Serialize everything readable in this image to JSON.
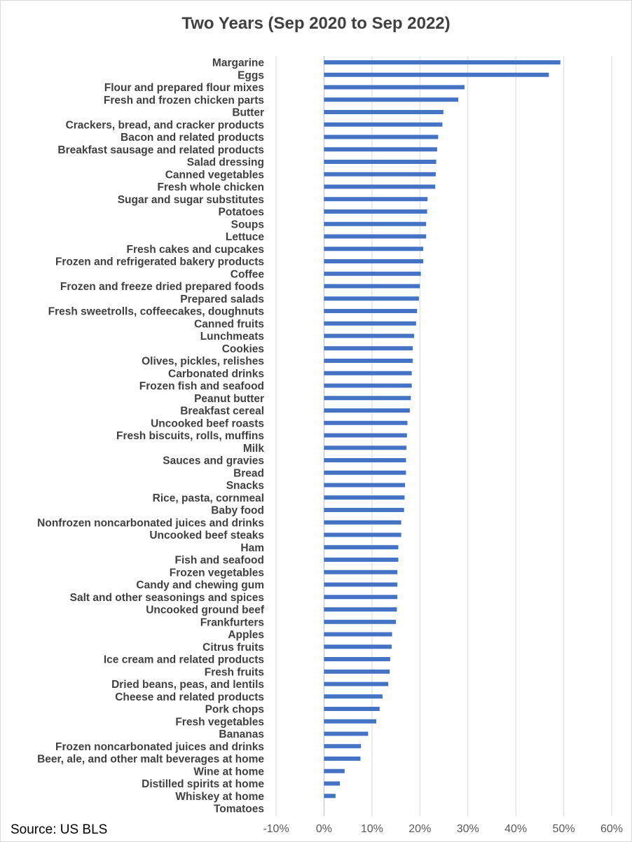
{
  "chart_data": {
    "type": "bar",
    "orientation": "horizontal",
    "title": "Two Years (Sep 2020 to Sep 2022)",
    "source": "Source: US BLS",
    "xlabel": "",
    "ylabel": "",
    "xlim": [
      -10,
      60
    ],
    "x_ticks": [
      -10,
      0,
      10,
      20,
      30,
      40,
      50,
      60
    ],
    "x_tick_labels": [
      "-10%",
      "0%",
      "10%",
      "20%",
      "30%",
      "40%",
      "50%",
      "60%"
    ],
    "grid": "vertical",
    "legend": "none",
    "categories": [
      "Margarine",
      "Eggs",
      "Flour and prepared flour mixes",
      "Fresh and frozen chicken parts",
      "Butter",
      "Crackers, bread, and cracker products",
      "Bacon and related products",
      "Breakfast sausage and related products",
      "Salad dressing",
      "Canned vegetables",
      "Fresh whole chicken",
      "Sugar and sugar substitutes",
      "Potatoes",
      "Soups",
      "Lettuce",
      "Fresh cakes and cupcakes",
      "Frozen and refrigerated bakery products",
      "Coffee",
      "Frozen and freeze dried prepared foods",
      "Prepared salads",
      "Fresh sweetrolls, coffeecakes, doughnuts",
      "Canned fruits",
      "Lunchmeats",
      "Cookies",
      "Olives, pickles, relishes",
      "Carbonated drinks",
      "Frozen fish and seafood",
      "Peanut butter",
      "Breakfast cereal",
      "Uncooked beef roasts",
      "Fresh biscuits, rolls, muffins",
      "Milk",
      "Sauces and gravies",
      "Bread",
      "Snacks",
      "Rice, pasta, cornmeal",
      "Baby food",
      "Nonfrozen noncarbonated juices and drinks",
      "Uncooked beef steaks",
      "Ham",
      "Fish and seafood",
      "Frozen vegetables",
      "Candy and chewing gum",
      "Salt and other seasonings and spices",
      "Uncooked ground beef",
      "Frankfurters",
      "Apples",
      "Citrus fruits",
      "Ice cream and related products",
      "Fresh fruits",
      "Dried beans, peas, and lentils",
      "Cheese and related products",
      "Pork chops",
      "Fresh vegetables",
      "Bananas",
      "Frozen noncarbonated juices and drinks",
      "Beer, ale, and other malt beverages at home",
      "Wine at home",
      "Distilled spirits at home",
      "Whiskey at home",
      "Tomatoes"
    ],
    "values": [
      49.3,
      46.9,
      29.3,
      28.0,
      24.9,
      24.7,
      23.8,
      23.6,
      23.4,
      23.3,
      23.2,
      21.6,
      21.5,
      21.3,
      21.3,
      20.7,
      20.7,
      20.2,
      20.0,
      19.8,
      19.4,
      19.2,
      18.8,
      18.5,
      18.5,
      18.3,
      18.3,
      18.1,
      17.9,
      17.4,
      17.3,
      17.2,
      17.1,
      17.1,
      16.9,
      16.8,
      16.7,
      16.1,
      16.1,
      15.5,
      15.5,
      15.3,
      15.3,
      15.3,
      15.2,
      15.0,
      14.2,
      14.1,
      13.8,
      13.7,
      13.4,
      12.2,
      11.6,
      10.9,
      9.2,
      7.7,
      7.6,
      4.3,
      3.3,
      2.4,
      0.0
    ],
    "bar_color": "#4472c4"
  }
}
